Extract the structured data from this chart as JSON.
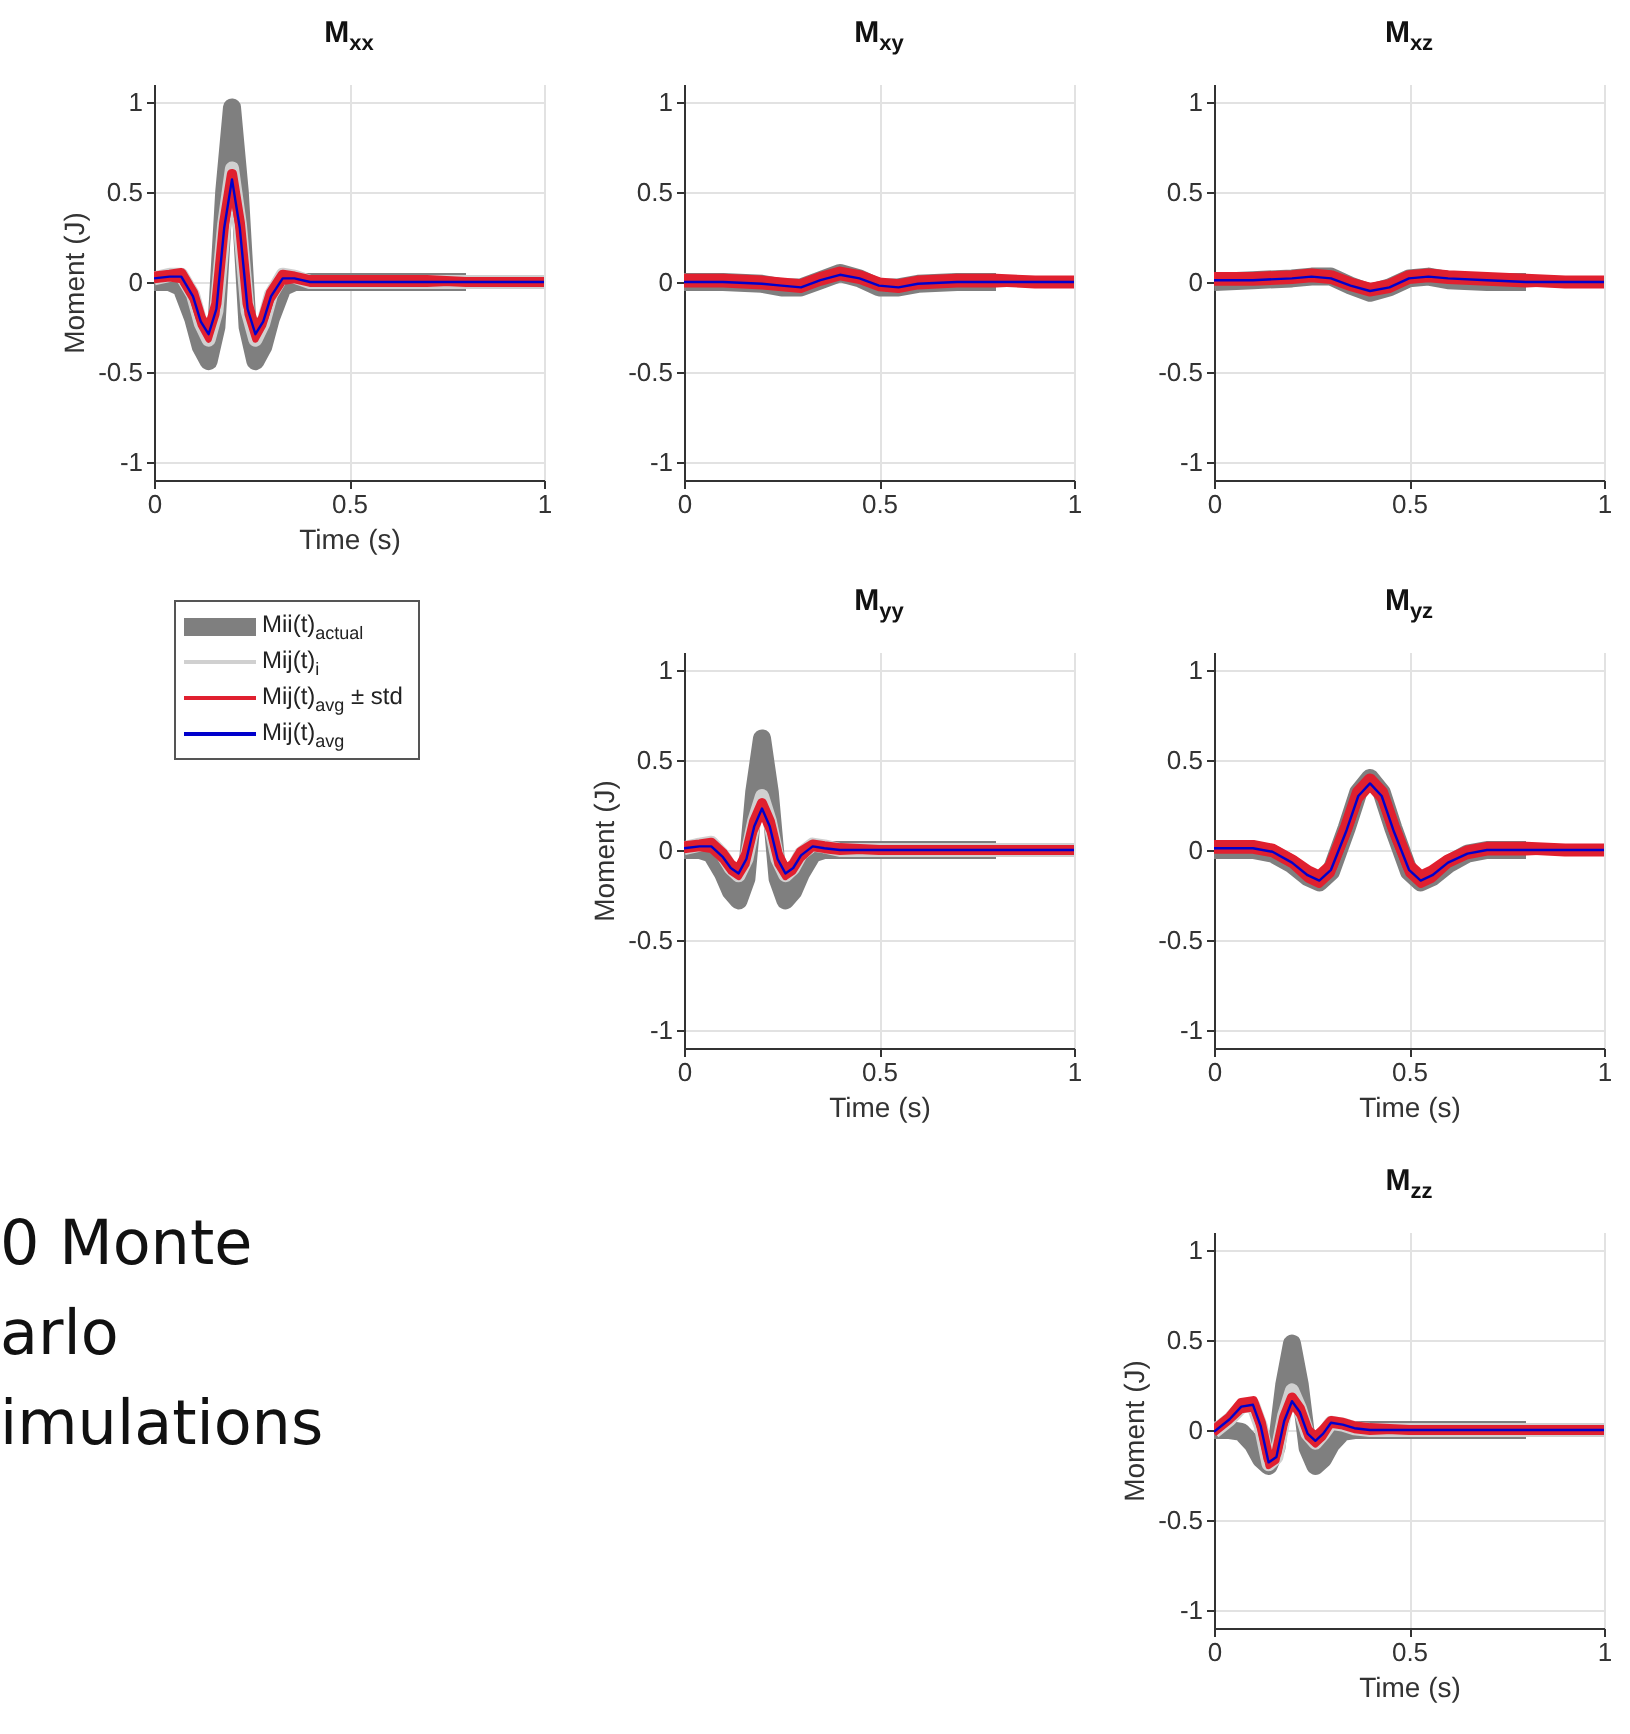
{
  "chart_data": [
    {
      "type": "line",
      "title": "M$_{xx}$",
      "xlabel": "Time (s)",
      "ylabel": "Moment (J)",
      "xlim": [
        0,
        1
      ],
      "ylim": [
        -1.1,
        1.1
      ],
      "xticks": [
        0,
        0.5,
        1
      ],
      "yticks": [
        -1,
        -0.5,
        0,
        0.5,
        1
      ],
      "grid": true,
      "legend": "bottom",
      "series": [
        {
          "name": "Mii(t)$_{actual}$",
          "color": "#7f7f7f",
          "x": [
            0,
            0.04,
            0.07,
            0.1,
            0.12,
            0.14,
            0.16,
            0.18,
            0.2,
            0.22,
            0.24,
            0.26,
            0.28,
            0.3,
            0.33,
            0.36,
            0.4,
            0.5,
            0.6,
            0.7,
            0.8
          ],
          "values": [
            0,
            0,
            -0.03,
            -0.2,
            -0.36,
            -0.44,
            -0.25,
            0.5,
            0.97,
            0.5,
            -0.25,
            -0.44,
            -0.36,
            -0.2,
            -0.03,
            0,
            0,
            0,
            0,
            0,
            0
          ]
        },
        {
          "name": "Mij(t)$_{i}$",
          "color": "#d0d0d0",
          "x": [
            0,
            0.04,
            0.07,
            0.1,
            0.12,
            0.14,
            0.16,
            0.18,
            0.2,
            0.22,
            0.24,
            0.26,
            0.28,
            0.3,
            0.33,
            0.36,
            0.4,
            0.5,
            0.6,
            0.7,
            0.8,
            0.9,
            1
          ],
          "values": [
            0.02,
            0.04,
            0.04,
            -0.07,
            -0.23,
            -0.32,
            -0.16,
            0.32,
            0.63,
            0.32,
            -0.16,
            -0.32,
            -0.23,
            -0.07,
            0.04,
            0.03,
            0,
            0,
            0,
            0,
            0,
            0,
            0
          ]
        },
        {
          "name": "Mij(t)$_{avg}$ ± std",
          "color": "#e0202f",
          "x": [
            0,
            0.04,
            0.07,
            0.1,
            0.12,
            0.14,
            0.16,
            0.18,
            0.2,
            0.22,
            0.24,
            0.26,
            0.28,
            0.3,
            0.33,
            0.36,
            0.4,
            0.5,
            0.6,
            0.7,
            0.8,
            0.9,
            1
          ],
          "values": [
            0.03,
            0.04,
            0.05,
            -0.06,
            -0.2,
            -0.27,
            -0.12,
            0.33,
            0.6,
            0.33,
            -0.12,
            -0.27,
            -0.2,
            -0.06,
            0.04,
            0.03,
            0.01,
            0.01,
            0.01,
            0.01,
            0,
            0,
            0
          ]
        },
        {
          "color": "#e0202f",
          "x": [
            0,
            0.04,
            0.07,
            0.1,
            0.12,
            0.14,
            0.16,
            0.18,
            0.2,
            0.22,
            0.24,
            0.26,
            0.28,
            0.3,
            0.33,
            0.36,
            0.4,
            0.5,
            0.6,
            0.7,
            0.8,
            0.9,
            1
          ],
          "values": [
            0.01,
            0.02,
            0.01,
            -0.1,
            -0.24,
            -0.32,
            -0.18,
            0.27,
            0.52,
            0.27,
            -0.18,
            -0.32,
            -0.24,
            -0.1,
            0,
            0.01,
            -0.01,
            -0.01,
            -0.01,
            -0.01,
            0,
            0,
            0
          ]
        },
        {
          "name": "Mij(t)$_{avg}$",
          "color": "#0000cc",
          "x": [
            0,
            0.04,
            0.07,
            0.1,
            0.12,
            0.14,
            0.16,
            0.18,
            0.2,
            0.22,
            0.24,
            0.26,
            0.28,
            0.3,
            0.33,
            0.36,
            0.4,
            0.5,
            0.6,
            0.7,
            0.8,
            0.9,
            1
          ],
          "values": [
            0.02,
            0.03,
            0.03,
            -0.08,
            -0.22,
            -0.29,
            -0.15,
            0.3,
            0.57,
            0.3,
            -0.15,
            -0.29,
            -0.22,
            -0.08,
            0.02,
            0.02,
            0,
            0,
            0,
            0,
            0,
            0,
            0
          ]
        }
      ]
    },
    {
      "type": "line",
      "title": "M$_{xy}$",
      "xlim": [
        0,
        1
      ],
      "ylim": [
        -1.1,
        1.1
      ],
      "xticks": [
        0,
        0.5,
        1
      ],
      "yticks": [
        -1,
        -0.5,
        0,
        0.5,
        1
      ],
      "grid": true,
      "series": [
        {
          "color": "#7f7f7f",
          "x": [
            0,
            0.1,
            0.2,
            0.25,
            0.3,
            0.35,
            0.4,
            0.45,
            0.5,
            0.55,
            0.6,
            0.7,
            0.8
          ],
          "values": [
            0,
            0,
            -0.01,
            -0.03,
            -0.03,
            0.01,
            0.05,
            0.02,
            -0.03,
            -0.03,
            -0.01,
            0,
            0
          ]
        },
        {
          "color": "#e0202f",
          "x": [
            0,
            0.1,
            0.2,
            0.25,
            0.3,
            0.35,
            0.4,
            0.45,
            0.5,
            0.55,
            0.6,
            0.7,
            0.8,
            0.9,
            1
          ],
          "values": [
            0.01,
            0.01,
            0,
            -0.01,
            -0.02,
            0.02,
            0.05,
            0.03,
            -0.01,
            -0.02,
            0,
            0.01,
            0.01,
            0,
            0
          ]
        },
        {
          "color": "#e0202f",
          "x": [
            0,
            0.1,
            0.2,
            0.25,
            0.3,
            0.35,
            0.4,
            0.45,
            0.5,
            0.55,
            0.6,
            0.7,
            0.8,
            0.9,
            1
          ],
          "values": [
            -0.01,
            -0.01,
            -0.02,
            -0.03,
            -0.04,
            0,
            0.03,
            0.01,
            -0.03,
            -0.04,
            -0.02,
            -0.01,
            -0.01,
            0,
            0
          ]
        },
        {
          "color": "#0000cc",
          "x": [
            0,
            0.1,
            0.2,
            0.25,
            0.3,
            0.35,
            0.4,
            0.45,
            0.5,
            0.55,
            0.6,
            0.7,
            0.8,
            0.9,
            1
          ],
          "values": [
            0,
            0,
            -0.01,
            -0.02,
            -0.03,
            0.01,
            0.04,
            0.02,
            -0.02,
            -0.03,
            -0.01,
            0,
            0,
            0,
            0
          ]
        }
      ]
    },
    {
      "type": "line",
      "title": "M$_{xz}$",
      "xlim": [
        0,
        1
      ],
      "ylim": [
        -1.1,
        1.1
      ],
      "xticks": [
        0,
        0.5,
        1
      ],
      "yticks": [
        -1,
        -0.5,
        0,
        0.5,
        1
      ],
      "grid": true,
      "series": [
        {
          "color": "#7f7f7f",
          "x": [
            0,
            0.1,
            0.2,
            0.25,
            0.3,
            0.35,
            0.4,
            0.45,
            0.5,
            0.55,
            0.6,
            0.7,
            0.8
          ],
          "values": [
            0,
            0.01,
            0.02,
            0.03,
            0.03,
            -0.02,
            -0.06,
            -0.03,
            0.02,
            0.03,
            0.01,
            0,
            0
          ]
        },
        {
          "color": "#e0202f",
          "x": [
            0,
            0.1,
            0.2,
            0.25,
            0.3,
            0.35,
            0.4,
            0.45,
            0.5,
            0.55,
            0.6,
            0.7,
            0.8,
            0.9,
            1
          ],
          "values": [
            0.02,
            0.02,
            0.03,
            0.04,
            0.03,
            -0.01,
            -0.04,
            -0.02,
            0.03,
            0.04,
            0.03,
            0.02,
            0.01,
            0,
            0
          ]
        },
        {
          "color": "#e0202f",
          "x": [
            0,
            0.1,
            0.2,
            0.25,
            0.3,
            0.35,
            0.4,
            0.45,
            0.5,
            0.55,
            0.6,
            0.7,
            0.8,
            0.9,
            1
          ],
          "values": [
            0,
            0,
            0.01,
            0.02,
            0.01,
            -0.03,
            -0.06,
            -0.04,
            0.01,
            0.02,
            0.01,
            0,
            -0.01,
            0,
            0
          ]
        },
        {
          "color": "#0000cc",
          "x": [
            0,
            0.1,
            0.2,
            0.25,
            0.3,
            0.35,
            0.4,
            0.45,
            0.5,
            0.55,
            0.6,
            0.7,
            0.8,
            0.9,
            1
          ],
          "values": [
            0.01,
            0.01,
            0.02,
            0.03,
            0.02,
            -0.02,
            -0.05,
            -0.03,
            0.02,
            0.03,
            0.02,
            0.01,
            0,
            0,
            0
          ]
        }
      ]
    },
    {
      "type": "line",
      "title": "M$_{yy}$",
      "xlabel": "Time (s)",
      "ylabel": "Moment (J)",
      "xlim": [
        0,
        1
      ],
      "ylim": [
        -1.1,
        1.1
      ],
      "xticks": [
        0,
        0.5,
        1
      ],
      "yticks": [
        -1,
        -0.5,
        0,
        0.5,
        1
      ],
      "grid": true,
      "series": [
        {
          "color": "#7f7f7f",
          "x": [
            0,
            0.04,
            0.07,
            0.1,
            0.12,
            0.14,
            0.16,
            0.18,
            0.2,
            0.22,
            0.24,
            0.26,
            0.28,
            0.3,
            0.33,
            0.36,
            0.4,
            0.5,
            0.6,
            0.7,
            0.8
          ],
          "values": [
            0,
            0,
            -0.02,
            -0.13,
            -0.23,
            -0.28,
            -0.16,
            0.32,
            0.62,
            0.32,
            -0.16,
            -0.28,
            -0.23,
            -0.13,
            -0.02,
            0,
            0,
            0,
            0,
            0,
            0
          ]
        },
        {
          "color": "#d0d0d0",
          "x": [
            0,
            0.04,
            0.07,
            0.1,
            0.12,
            0.14,
            0.16,
            0.18,
            0.2,
            0.22,
            0.24,
            0.26,
            0.28,
            0.3,
            0.33,
            0.36,
            0.4,
            0.5,
            0.6,
            0.7,
            0.8,
            0.9,
            1
          ],
          "values": [
            0.01,
            0.03,
            0.04,
            -0.03,
            -0.1,
            -0.14,
            -0.05,
            0.16,
            0.3,
            0.16,
            -0.05,
            -0.14,
            -0.1,
            -0.02,
            0.03,
            0.02,
            0,
            0,
            0,
            0,
            0,
            0,
            0
          ]
        },
        {
          "color": "#e0202f",
          "x": [
            0,
            0.04,
            0.07,
            0.1,
            0.12,
            0.14,
            0.16,
            0.18,
            0.2,
            0.22,
            0.24,
            0.26,
            0.28,
            0.3,
            0.33,
            0.36,
            0.4,
            0.5,
            0.6,
            0.7,
            0.8,
            0.9,
            1
          ],
          "values": [
            0.02,
            0.03,
            0.04,
            -0.02,
            -0.08,
            -0.11,
            -0.02,
            0.16,
            0.26,
            0.16,
            -0.02,
            -0.11,
            -0.08,
            -0.01,
            0.03,
            0.02,
            0.01,
            0,
            0,
            0,
            0,
            0,
            0
          ]
        },
        {
          "color": "#e0202f",
          "x": [
            0,
            0.04,
            0.07,
            0.1,
            0.12,
            0.14,
            0.16,
            0.18,
            0.2,
            0.22,
            0.24,
            0.26,
            0.28,
            0.3,
            0.33,
            0.36,
            0.4,
            0.5,
            0.6,
            0.7,
            0.8,
            0.9,
            1
          ],
          "values": [
            0,
            0.01,
            0,
            -0.06,
            -0.12,
            -0.15,
            -0.08,
            0.1,
            0.2,
            0.1,
            -0.08,
            -0.15,
            -0.12,
            -0.05,
            0.01,
            0,
            -0.01,
            0,
            0,
            0,
            0,
            0,
            0
          ]
        },
        {
          "color": "#0000cc",
          "x": [
            0,
            0.04,
            0.07,
            0.1,
            0.12,
            0.14,
            0.16,
            0.18,
            0.2,
            0.22,
            0.24,
            0.26,
            0.28,
            0.3,
            0.33,
            0.36,
            0.4,
            0.5,
            0.6,
            0.7,
            0.8,
            0.9,
            1
          ],
          "values": [
            0.01,
            0.02,
            0.02,
            -0.04,
            -0.1,
            -0.13,
            -0.05,
            0.13,
            0.23,
            0.13,
            -0.05,
            -0.13,
            -0.1,
            -0.03,
            0.02,
            0.01,
            0,
            0,
            0,
            0,
            0,
            0,
            0
          ]
        }
      ]
    },
    {
      "type": "line",
      "title": "M$_{yz}$",
      "xlabel": "Time (s)",
      "xlim": [
        0,
        1
      ],
      "ylim": [
        -1.1,
        1.1
      ],
      "xticks": [
        0,
        0.5,
        1
      ],
      "yticks": [
        -1,
        -0.5,
        0,
        0.5,
        1
      ],
      "grid": true,
      "series": [
        {
          "color": "#7f7f7f",
          "x": [
            0,
            0.1,
            0.15,
            0.2,
            0.24,
            0.27,
            0.3,
            0.34,
            0.37,
            0.4,
            0.43,
            0.46,
            0.5,
            0.53,
            0.56,
            0.6,
            0.65,
            0.7,
            0.8
          ],
          "values": [
            0,
            0,
            -0.02,
            -0.08,
            -0.15,
            -0.18,
            -0.12,
            0.12,
            0.32,
            0.4,
            0.32,
            0.12,
            -0.12,
            -0.18,
            -0.15,
            -0.08,
            -0.02,
            0,
            0
          ]
        },
        {
          "color": "#e0202f",
          "x": [
            0,
            0.1,
            0.15,
            0.2,
            0.24,
            0.27,
            0.3,
            0.34,
            0.37,
            0.4,
            0.43,
            0.46,
            0.5,
            0.53,
            0.56,
            0.6,
            0.65,
            0.7,
            0.8,
            0.9,
            1
          ],
          "values": [
            0.02,
            0.02,
            0,
            -0.06,
            -0.12,
            -0.15,
            -0.09,
            0.13,
            0.32,
            0.39,
            0.32,
            0.13,
            -0.09,
            -0.15,
            -0.12,
            -0.06,
            -0.01,
            0.01,
            0.01,
            0,
            0
          ]
        },
        {
          "color": "#e0202f",
          "x": [
            0,
            0.1,
            0.15,
            0.2,
            0.24,
            0.27,
            0.3,
            0.34,
            0.37,
            0.4,
            0.43,
            0.46,
            0.5,
            0.53,
            0.56,
            0.6,
            0.65,
            0.7,
            0.8,
            0.9,
            1
          ],
          "values": [
            0,
            0,
            -0.02,
            -0.08,
            -0.16,
            -0.19,
            -0.13,
            0.09,
            0.28,
            0.35,
            0.28,
            0.09,
            -0.13,
            -0.19,
            -0.16,
            -0.08,
            -0.03,
            -0.01,
            -0.01,
            0,
            0
          ]
        },
        {
          "color": "#0000cc",
          "x": [
            0,
            0.1,
            0.15,
            0.2,
            0.24,
            0.27,
            0.3,
            0.34,
            0.37,
            0.4,
            0.43,
            0.46,
            0.5,
            0.53,
            0.56,
            0.6,
            0.65,
            0.7,
            0.8,
            0.9,
            1
          ],
          "values": [
            0.01,
            0.01,
            -0.01,
            -0.07,
            -0.14,
            -0.17,
            -0.11,
            0.11,
            0.3,
            0.37,
            0.3,
            0.11,
            -0.11,
            -0.17,
            -0.14,
            -0.07,
            -0.02,
            0,
            0,
            0,
            0
          ]
        }
      ]
    },
    {
      "type": "other",
      "annotations": [
        "0 Monte",
        "arlo",
        "imulations"
      ]
    },
    {
      "type": "line",
      "title": "M$_{zz}$",
      "xlabel": "Time (s)",
      "ylabel": "Moment (J)",
      "xlim": [
        0,
        1
      ],
      "ylim": [
        -1.1,
        1.1
      ],
      "xticks": [
        0,
        0.5,
        1
      ],
      "yticks": [
        -1,
        -0.5,
        0,
        0.5,
        1
      ],
      "grid": true,
      "series": [
        {
          "color": "#7f7f7f",
          "x": [
            0,
            0.04,
            0.07,
            0.1,
            0.12,
            0.14,
            0.16,
            0.18,
            0.2,
            0.22,
            0.24,
            0.26,
            0.28,
            0.3,
            0.33,
            0.36,
            0.4,
            0.5,
            0.6,
            0.7,
            0.8
          ],
          "values": [
            0,
            0,
            -0.01,
            -0.08,
            -0.16,
            -0.2,
            -0.1,
            0.25,
            0.48,
            0.25,
            -0.1,
            -0.2,
            -0.16,
            -0.08,
            -0.01,
            0,
            0,
            0,
            0,
            0,
            0
          ]
        },
        {
          "color": "#d0d0d0",
          "x": [
            0,
            0.04,
            0.07,
            0.1,
            0.12,
            0.14,
            0.16,
            0.18,
            0.2,
            0.22,
            0.24,
            0.26,
            0.28,
            0.3,
            0.33,
            0.36,
            0.4,
            0.5,
            0.6,
            0.7,
            0.8,
            0.9,
            1
          ],
          "values": [
            -0.01,
            0.06,
            0.13,
            0.14,
            0.02,
            -0.19,
            -0.15,
            0.08,
            0.22,
            0.12,
            -0.02,
            -0.07,
            -0.02,
            0.04,
            0.03,
            0.01,
            0,
            0,
            0,
            0,
            0,
            0,
            0
          ]
        },
        {
          "color": "#e0202f",
          "x": [
            0,
            0.04,
            0.07,
            0.1,
            0.12,
            0.14,
            0.16,
            0.18,
            0.2,
            0.22,
            0.24,
            0.26,
            0.28,
            0.3,
            0.33,
            0.36,
            0.4,
            0.5,
            0.6,
            0.7,
            0.8,
            0.9,
            1
          ],
          "values": [
            0,
            0.07,
            0.15,
            0.16,
            0.04,
            -0.16,
            -0.13,
            0.07,
            0.18,
            0.12,
            0,
            -0.04,
            0,
            0.05,
            0.04,
            0.02,
            0.01,
            0,
            0,
            0,
            0,
            0,
            0
          ]
        },
        {
          "color": "#e0202f",
          "x": [
            0,
            0.04,
            0.07,
            0.1,
            0.12,
            0.14,
            0.16,
            0.18,
            0.2,
            0.22,
            0.24,
            0.26,
            0.28,
            0.3,
            0.33,
            0.36,
            0.4,
            0.5,
            0.6,
            0.7,
            0.8,
            0.9,
            1
          ],
          "values": [
            -0.02,
            0.05,
            0.11,
            0.12,
            0,
            -0.2,
            -0.17,
            0.03,
            0.14,
            0.08,
            -0.04,
            -0.08,
            -0.04,
            0.03,
            0.02,
            0,
            -0.01,
            0,
            0,
            0,
            0,
            0,
            0
          ]
        },
        {
          "color": "#0000cc",
          "x": [
            0,
            0.04,
            0.07,
            0.1,
            0.12,
            0.14,
            0.16,
            0.18,
            0.2,
            0.22,
            0.24,
            0.26,
            0.28,
            0.3,
            0.33,
            0.36,
            0.4,
            0.5,
            0.6,
            0.7,
            0.8,
            0.9,
            1
          ],
          "values": [
            -0.01,
            0.06,
            0.13,
            0.14,
            0.02,
            -0.18,
            -0.15,
            0.05,
            0.16,
            0.1,
            -0.02,
            -0.06,
            -0.02,
            0.04,
            0.03,
            0.01,
            0,
            0,
            0,
            0,
            0,
            0,
            0
          ]
        }
      ]
    }
  ]
}
